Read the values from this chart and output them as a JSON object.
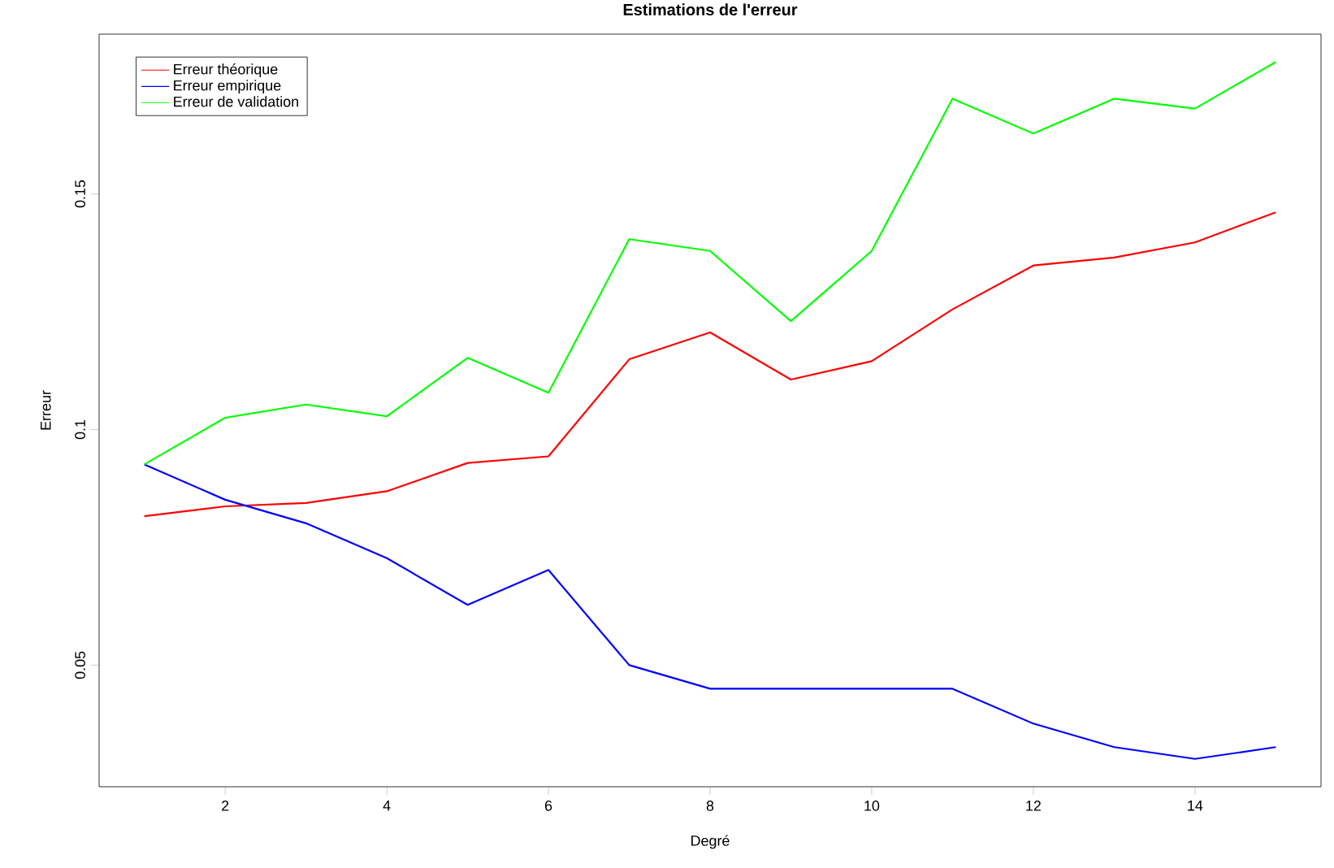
{
  "chart_data": {
    "type": "line",
    "title": "Estimations de l'erreur",
    "xlabel": "Degré",
    "ylabel": "Erreur",
    "x": [
      1,
      2,
      3,
      4,
      5,
      6,
      7,
      8,
      9,
      10,
      11,
      12,
      13,
      14,
      15
    ],
    "series": [
      {
        "name": "Erreur théorique",
        "color": "#ff0000",
        "values": [
          0.0816,
          0.0837,
          0.0844,
          0.0869,
          0.0929,
          0.0943,
          0.1149,
          0.1206,
          0.1106,
          0.1145,
          0.1255,
          0.1348,
          0.1365,
          0.1397,
          0.1461
        ]
      },
      {
        "name": "Erreur empirique",
        "color": "#0000ff",
        "values": [
          0.0926,
          0.0851,
          0.0801,
          0.0727,
          0.0628,
          0.0702,
          0.05,
          0.045,
          0.045,
          0.045,
          0.045,
          0.0376,
          0.0326,
          0.0301,
          0.0326
        ]
      },
      {
        "name": "Erreur de validation",
        "color": "#00ff00",
        "values": [
          0.0926,
          0.1025,
          0.1053,
          0.1028,
          0.1152,
          0.1078,
          0.1404,
          0.1379,
          0.123,
          0.1379,
          0.1702,
          0.1628,
          0.1702,
          0.1681,
          0.178
        ]
      }
    ],
    "xlim": [
      0.44,
      15.56
    ],
    "ylim": [
      0.0242,
      0.1839
    ],
    "xticks": [
      2,
      4,
      6,
      8,
      10,
      12,
      14
    ],
    "yticks": [
      0.05,
      0.1,
      0.15
    ],
    "legend": "top left",
    "grid": false,
    "marker": "none",
    "line_style": "solid"
  }
}
